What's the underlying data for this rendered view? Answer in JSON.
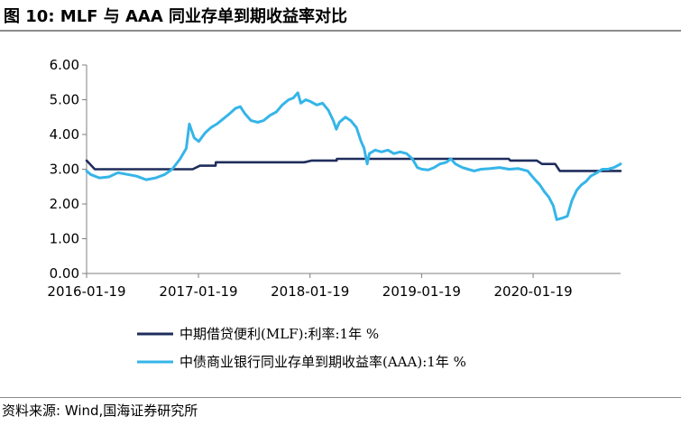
{
  "title": "图 10:  MLF 与 AAA 同业存单到期收益率对比",
  "source": "资料来源:  Wind,国海证券研究所",
  "chart_data": {
    "type": "line",
    "title": "图 10:  MLF 与 AAA 同业存单到期收益率对比",
    "xlabel": "",
    "ylabel": "",
    "ylim": [
      0,
      6
    ],
    "yticks": [
      "0.00",
      "1.00",
      "2.00",
      "3.00",
      "4.00",
      "5.00",
      "6.00"
    ],
    "xticks": [
      "2016-01-19",
      "2017-01-19",
      "2018-01-19",
      "2019-01-19",
      "2020-01-19"
    ],
    "xrange": [
      "2016-01-19",
      "2020-10-31"
    ],
    "grid": false,
    "legend_position": "bottom",
    "series": [
      {
        "name": "中期借贷便利(MLF):利率:1年  %",
        "color": "#1f2d5c",
        "points": [
          [
            "2016-01-19",
            3.25
          ],
          [
            "2016-02-15",
            3.0
          ],
          [
            "2016-12-31",
            3.0
          ],
          [
            "2017-01-24",
            3.1
          ],
          [
            "2017-03-16",
            3.1
          ],
          [
            "2017-03-17",
            3.2
          ],
          [
            "2017-12-31",
            3.2
          ],
          [
            "2018-01-25",
            3.25
          ],
          [
            "2018-04-16",
            3.25
          ],
          [
            "2018-04-17",
            3.3
          ],
          [
            "2019-10-31",
            3.3
          ],
          [
            "2019-11-05",
            3.25
          ],
          [
            "2020-01-31",
            3.25
          ],
          [
            "2020-02-17",
            3.15
          ],
          [
            "2020-03-31",
            3.15
          ],
          [
            "2020-04-15",
            2.95
          ],
          [
            "2020-10-31",
            2.95
          ]
        ]
      },
      {
        "name": "中债商业银行同业存单到期收益率(AAA):1年  %",
        "color": "#35b5e8",
        "points": [
          [
            "2016-01-19",
            2.95
          ],
          [
            "2016-02-01",
            2.85
          ],
          [
            "2016-03-01",
            2.75
          ],
          [
            "2016-04-01",
            2.78
          ],
          [
            "2016-05-01",
            2.9
          ],
          [
            "2016-06-01",
            2.85
          ],
          [
            "2016-07-01",
            2.8
          ],
          [
            "2016-08-01",
            2.7
          ],
          [
            "2016-09-01",
            2.75
          ],
          [
            "2016-10-01",
            2.85
          ],
          [
            "2016-10-25",
            3.0
          ],
          [
            "2016-11-20",
            3.3
          ],
          [
            "2016-12-10",
            3.6
          ],
          [
            "2016-12-20",
            4.3
          ],
          [
            "2017-01-05",
            3.9
          ],
          [
            "2017-01-20",
            3.8
          ],
          [
            "2017-02-10",
            4.05
          ],
          [
            "2017-03-01",
            4.2
          ],
          [
            "2017-03-20",
            4.3
          ],
          [
            "2017-04-10",
            4.45
          ],
          [
            "2017-05-01",
            4.6
          ],
          [
            "2017-05-20",
            4.75
          ],
          [
            "2017-06-05",
            4.8
          ],
          [
            "2017-06-20",
            4.6
          ],
          [
            "2017-07-10",
            4.4
          ],
          [
            "2017-08-01",
            4.35
          ],
          [
            "2017-08-20",
            4.4
          ],
          [
            "2017-09-10",
            4.55
          ],
          [
            "2017-10-01",
            4.65
          ],
          [
            "2017-10-20",
            4.85
          ],
          [
            "2017-11-10",
            5.0
          ],
          [
            "2017-11-25",
            5.05
          ],
          [
            "2017-12-10",
            5.2
          ],
          [
            "2017-12-20",
            4.9
          ],
          [
            "2018-01-05",
            5.0
          ],
          [
            "2018-01-20",
            4.95
          ],
          [
            "2018-02-10",
            4.85
          ],
          [
            "2018-03-01",
            4.9
          ],
          [
            "2018-03-20",
            4.7
          ],
          [
            "2018-04-05",
            4.4
          ],
          [
            "2018-04-15",
            4.15
          ],
          [
            "2018-04-25",
            4.35
          ],
          [
            "2018-05-15",
            4.5
          ],
          [
            "2018-06-01",
            4.4
          ],
          [
            "2018-06-20",
            4.2
          ],
          [
            "2018-07-05",
            3.8
          ],
          [
            "2018-07-15",
            3.6
          ],
          [
            "2018-07-25",
            3.15
          ],
          [
            "2018-08-01",
            3.45
          ],
          [
            "2018-08-20",
            3.55
          ],
          [
            "2018-09-10",
            3.5
          ],
          [
            "2018-10-01",
            3.55
          ],
          [
            "2018-10-20",
            3.45
          ],
          [
            "2018-11-10",
            3.5
          ],
          [
            "2018-12-01",
            3.45
          ],
          [
            "2018-12-20",
            3.3
          ],
          [
            "2019-01-05",
            3.05
          ],
          [
            "2019-01-20",
            3.0
          ],
          [
            "2019-02-10",
            2.98
          ],
          [
            "2019-03-01",
            3.05
          ],
          [
            "2019-03-20",
            3.15
          ],
          [
            "2019-04-10",
            3.2
          ],
          [
            "2019-04-25",
            3.3
          ],
          [
            "2019-05-10",
            3.15
          ],
          [
            "2019-06-01",
            3.05
          ],
          [
            "2019-06-20",
            3.0
          ],
          [
            "2019-07-10",
            2.95
          ],
          [
            "2019-08-01",
            3.0
          ],
          [
            "2019-09-01",
            3.02
          ],
          [
            "2019-10-01",
            3.05
          ],
          [
            "2019-11-01",
            3.0
          ],
          [
            "2019-12-01",
            3.02
          ],
          [
            "2020-01-01",
            2.95
          ],
          [
            "2020-01-20",
            2.75
          ],
          [
            "2020-02-10",
            2.55
          ],
          [
            "2020-02-25",
            2.35
          ],
          [
            "2020-03-10",
            2.2
          ],
          [
            "2020-03-25",
            1.95
          ],
          [
            "2020-04-05",
            1.55
          ],
          [
            "2020-04-25",
            1.6
          ],
          [
            "2020-05-10",
            1.65
          ],
          [
            "2020-05-25",
            2.1
          ],
          [
            "2020-06-10",
            2.4
          ],
          [
            "2020-06-25",
            2.55
          ],
          [
            "2020-07-10",
            2.65
          ],
          [
            "2020-07-25",
            2.8
          ],
          [
            "2020-08-15",
            2.9
          ],
          [
            "2020-09-01",
            3.0
          ],
          [
            "2020-09-20",
            3.0
          ],
          [
            "2020-10-10",
            3.05
          ],
          [
            "2020-10-31",
            3.15
          ]
        ]
      }
    ]
  }
}
